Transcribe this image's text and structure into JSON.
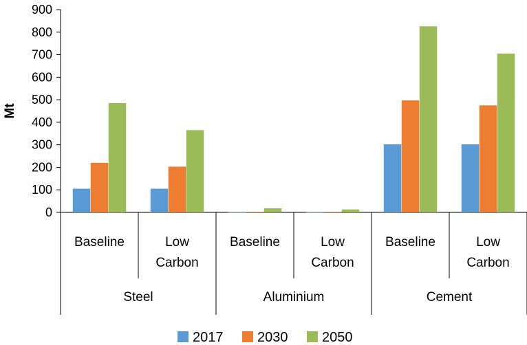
{
  "chart_data": {
    "type": "bar",
    "ylabel": "Mt",
    "ylim": [
      0,
      900
    ],
    "yticks": [
      "0",
      "100",
      "200",
      "300",
      "400",
      "500",
      "600",
      "700",
      "800",
      "900"
    ],
    "groups": [
      {
        "name": "Steel",
        "categories": [
          [
            "Baseline"
          ],
          [
            "Low",
            "Carbon"
          ]
        ]
      },
      {
        "name": "Aluminium",
        "categories": [
          [
            "Baseline"
          ],
          [
            "Low",
            "Carbon"
          ]
        ]
      },
      {
        "name": "Cement",
        "categories": [
          [
            "Baseline"
          ],
          [
            "Low",
            "Carbon"
          ]
        ]
      }
    ],
    "series": [
      {
        "name": "2017",
        "color": "#5B9BD5",
        "values": [
          105,
          105,
          1,
          1,
          302,
          302
        ]
      },
      {
        "name": "2030",
        "color": "#ED7D31",
        "values": [
          220,
          203,
          2,
          2,
          497,
          475
        ]
      },
      {
        "name": "2050",
        "color": "#9BBB59",
        "values": [
          485,
          365,
          18,
          13,
          826,
          705
        ]
      }
    ],
    "legend_position": "bottom",
    "grid": false
  }
}
